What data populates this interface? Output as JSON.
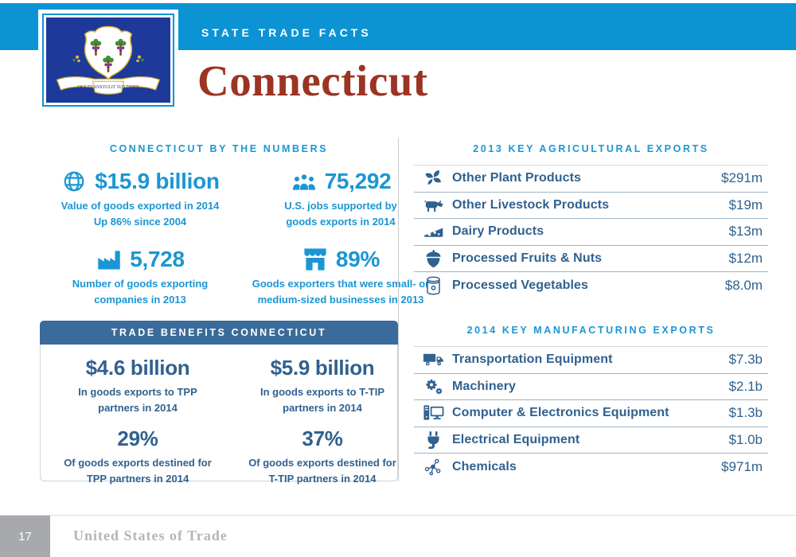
{
  "header": {
    "eyebrow": "STATE TRADE FACTS",
    "title": "Connecticut",
    "flag_motto": "QUI TRANSTULIT SUSTINET"
  },
  "colors": {
    "band_blue": "#0c93d4",
    "accent_blue": "#1b96d4",
    "navy": "#30618f",
    "trade_bar": "#3a6b9a",
    "title_red": "#9c3423",
    "footer_gray": "#a7a9ac"
  },
  "by_the_numbers": {
    "heading": "CONNECTICUT BY THE NUMBERS",
    "stats": [
      {
        "icon": "globe-icon",
        "value": "$15.9 billion",
        "caption": "Value of goods exported in 2014\nUp 86% since 2004"
      },
      {
        "icon": "workers-icon",
        "value": "75,292",
        "caption": "U.S. jobs supported by\ngoods exports in 2014"
      },
      {
        "icon": "factory-icon",
        "value": "5,728",
        "caption": "Number of goods exporting\ncompanies in 2013"
      },
      {
        "icon": "storefront-icon",
        "value": "89%",
        "caption": "Goods exporters that were small- or\nmedium-sized businesses in 2013"
      }
    ]
  },
  "trade_benefits": {
    "heading": "TRADE BENEFITS CONNECTICUT",
    "stats": [
      {
        "value": "$4.6 billion",
        "caption": "In goods exports to TPP\npartners in 2014"
      },
      {
        "value": "$5.9 billion",
        "caption": "In goods exports to T-TIP\npartners in 2014"
      },
      {
        "value": "29%",
        "caption": "Of goods exports destined for\nTPP partners in 2014"
      },
      {
        "value": "37%",
        "caption": "Of goods exports destined for\nT-TIP partners in 2014"
      }
    ]
  },
  "agricultural_exports": {
    "heading": "2013 KEY AGRICULTURAL EXPORTS",
    "rows": [
      {
        "icon": "plant-icon",
        "label": "Other Plant Products",
        "value": "$291m"
      },
      {
        "icon": "cow-icon",
        "label": "Other Livestock Products",
        "value": "$19m"
      },
      {
        "icon": "cheese-icon",
        "label": "Dairy Products",
        "value": "$13m"
      },
      {
        "icon": "acorn-icon",
        "label": "Processed Fruits & Nuts",
        "value": "$12m"
      },
      {
        "icon": "can-icon",
        "label": "Processed Vegetables",
        "value": "$8.0m"
      }
    ]
  },
  "manufacturing_exports": {
    "heading": "2014 KEY MANUFACTURING EXPORTS",
    "rows": [
      {
        "icon": "truck-icon",
        "label": "Transportation Equipment",
        "value": "$7.3b"
      },
      {
        "icon": "gears-icon",
        "label": "Machinery",
        "value": "$2.1b"
      },
      {
        "icon": "computer-icon",
        "label": "Computer & Electronics Equipment",
        "value": "$1.3b"
      },
      {
        "icon": "plug-icon",
        "label": "Electrical Equipment",
        "value": "$1.0b"
      },
      {
        "icon": "molecule-icon",
        "label": "Chemicals",
        "value": "$971m"
      }
    ]
  },
  "footer": {
    "page_number": "17",
    "brand": "United States of Trade"
  }
}
